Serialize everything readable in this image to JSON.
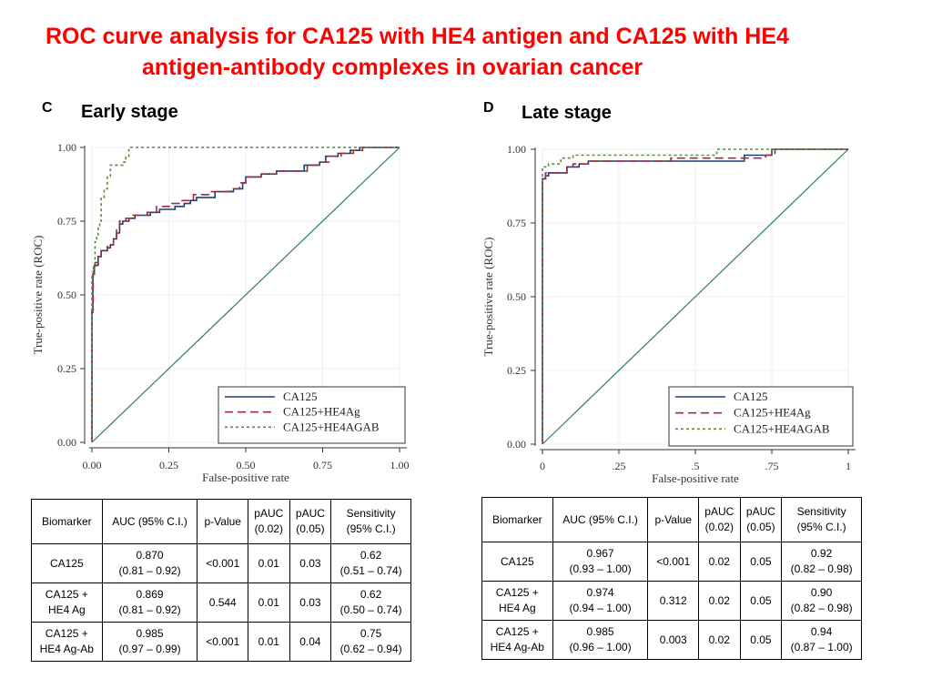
{
  "title": {
    "line1": "ROC curve analysis for CA125 with HE4 antigen and CA125 with HE4",
    "line2": "antigen-antibody complexes in ovarian cancer"
  },
  "panels": [
    {
      "letter": "C",
      "stage": "Early stage",
      "table": {
        "headers": [
          "Biomarker",
          "AUC (95% C.I.)",
          "p-Value",
          "pAUC\n(0.02)",
          "pAUC\n(0.05)",
          "Sensitivity\n(95% C.I.)"
        ],
        "rows": [
          [
            "CA125",
            "0.870\n(0.81 – 0.92)",
            "<0.001",
            "0.01",
            "0.03",
            "0.62\n(0.51 – 0.74)"
          ],
          [
            "CA125 +\nHE4 Ag",
            "0.869\n(0.81 – 0.92)",
            "0.544",
            "0.01",
            "0.03",
            "0.62\n(0.50 – 0.74)"
          ],
          [
            "CA125 +\nHE4 Ag-Ab",
            "0.985\n(0.97 – 0.99)",
            "<0.001",
            "0.01",
            "0.04",
            "0.75\n(0.62 – 0.94)"
          ]
        ]
      }
    },
    {
      "letter": "D",
      "stage": "Late stage",
      "table": {
        "headers": [
          "Biomarker",
          "AUC (95% C.I.)",
          "p-Value",
          "pAUC\n(0.02)",
          "pAUC\n(0.05)",
          "Sensitivity\n(95% C.I.)"
        ],
        "rows": [
          [
            "CA125",
            "0.967\n(0.93 – 1.00)",
            "<0.001",
            "0.02",
            "0.05",
            "0.92\n(0.82 – 0.98)"
          ],
          [
            "CA125 +\nHE4 Ag",
            "0.974\n(0.94 – 1.00)",
            "0.312",
            "0.02",
            "0.05",
            "0.90\n(0.82 – 0.98)"
          ],
          [
            "CA125 +\nHE4 Ag-Ab",
            "0.985\n(0.96 – 1.00)",
            "0.003",
            "0.02",
            "0.05",
            "0.94\n(0.87 – 1.00)"
          ]
        ]
      }
    }
  ],
  "chart_data": [
    {
      "type": "line",
      "title": "Early stage",
      "xlabel": "False-positive rate",
      "ylabel": "True-positive rate (ROC)",
      "xlim": [
        0,
        1
      ],
      "ylim": [
        0,
        1
      ],
      "x_ticks": [
        "0.00",
        "0.25",
        "0.50",
        "0.75",
        "1.00"
      ],
      "y_ticks": [
        "0.00",
        "0.25",
        "0.50",
        "0.75",
        "1.00"
      ],
      "grid": true,
      "legend_position": "bottom-right",
      "reference_line": [
        [
          0,
          0
        ],
        [
          1,
          1
        ]
      ],
      "series": [
        {
          "name": "CA125",
          "color": "#1f3f7a",
          "dash": "solid",
          "points": [
            [
              0,
              0
            ],
            [
              0,
              0.44
            ],
            [
              0.003,
              0.44
            ],
            [
              0.003,
              0.57
            ],
            [
              0.008,
              0.57
            ],
            [
              0.008,
              0.6
            ],
            [
              0.02,
              0.6
            ],
            [
              0.02,
              0.63
            ],
            [
              0.03,
              0.63
            ],
            [
              0.03,
              0.65
            ],
            [
              0.05,
              0.65
            ],
            [
              0.05,
              0.66
            ],
            [
              0.06,
              0.66
            ],
            [
              0.06,
              0.67
            ],
            [
              0.07,
              0.67
            ],
            [
              0.07,
              0.69
            ],
            [
              0.08,
              0.69
            ],
            [
              0.08,
              0.71
            ],
            [
              0.09,
              0.71
            ],
            [
              0.09,
              0.74
            ],
            [
              0.1,
              0.74
            ],
            [
              0.1,
              0.75
            ],
            [
              0.12,
              0.75
            ],
            [
              0.12,
              0.76
            ],
            [
              0.14,
              0.76
            ],
            [
              0.14,
              0.77
            ],
            [
              0.19,
              0.77
            ],
            [
              0.19,
              0.78
            ],
            [
              0.22,
              0.78
            ],
            [
              0.22,
              0.79
            ],
            [
              0.27,
              0.79
            ],
            [
              0.27,
              0.8
            ],
            [
              0.3,
              0.8
            ],
            [
              0.3,
              0.81
            ],
            [
              0.32,
              0.81
            ],
            [
              0.32,
              0.82
            ],
            [
              0.34,
              0.82
            ],
            [
              0.34,
              0.83
            ],
            [
              0.4,
              0.83
            ],
            [
              0.4,
              0.85
            ],
            [
              0.46,
              0.85
            ],
            [
              0.46,
              0.86
            ],
            [
              0.49,
              0.86
            ],
            [
              0.49,
              0.88
            ],
            [
              0.5,
              0.88
            ],
            [
              0.5,
              0.9
            ],
            [
              0.55,
              0.9
            ],
            [
              0.55,
              0.91
            ],
            [
              0.6,
              0.91
            ],
            [
              0.6,
              0.92
            ],
            [
              0.69,
              0.92
            ],
            [
              0.69,
              0.94
            ],
            [
              0.74,
              0.94
            ],
            [
              0.74,
              0.95
            ],
            [
              0.76,
              0.95
            ],
            [
              0.76,
              0.97
            ],
            [
              0.8,
              0.97
            ],
            [
              0.8,
              0.98
            ],
            [
              0.84,
              0.98
            ],
            [
              0.84,
              0.99
            ],
            [
              0.87,
              0.99
            ],
            [
              0.87,
              1
            ],
            [
              1,
              1
            ]
          ]
        },
        {
          "name": "CA125+HE4Ag",
          "color": "#a02c3c",
          "dash": "dashed",
          "points": [
            [
              0,
              0
            ],
            [
              0,
              0.45
            ],
            [
              0.004,
              0.45
            ],
            [
              0.004,
              0.58
            ],
            [
              0.01,
              0.58
            ],
            [
              0.01,
              0.61
            ],
            [
              0.02,
              0.61
            ],
            [
              0.02,
              0.63
            ],
            [
              0.03,
              0.63
            ],
            [
              0.03,
              0.65
            ],
            [
              0.05,
              0.65
            ],
            [
              0.05,
              0.67
            ],
            [
              0.07,
              0.67
            ],
            [
              0.07,
              0.69
            ],
            [
              0.08,
              0.69
            ],
            [
              0.08,
              0.72
            ],
            [
              0.09,
              0.72
            ],
            [
              0.09,
              0.75
            ],
            [
              0.11,
              0.75
            ],
            [
              0.11,
              0.76
            ],
            [
              0.13,
              0.76
            ],
            [
              0.13,
              0.77
            ],
            [
              0.18,
              0.77
            ],
            [
              0.18,
              0.78
            ],
            [
              0.21,
              0.78
            ],
            [
              0.21,
              0.8
            ],
            [
              0.26,
              0.8
            ],
            [
              0.26,
              0.81
            ],
            [
              0.29,
              0.81
            ],
            [
              0.29,
              0.82
            ],
            [
              0.33,
              0.82
            ],
            [
              0.33,
              0.84
            ],
            [
              0.38,
              0.84
            ],
            [
              0.38,
              0.85
            ],
            [
              0.45,
              0.85
            ],
            [
              0.45,
              0.86
            ],
            [
              0.48,
              0.86
            ],
            [
              0.48,
              0.88
            ],
            [
              0.5,
              0.88
            ],
            [
              0.5,
              0.9
            ],
            [
              0.55,
              0.9
            ],
            [
              0.55,
              0.91
            ],
            [
              0.6,
              0.91
            ],
            [
              0.6,
              0.92
            ],
            [
              0.7,
              0.92
            ],
            [
              0.7,
              0.94
            ],
            [
              0.74,
              0.94
            ],
            [
              0.74,
              0.95
            ],
            [
              0.77,
              0.95
            ],
            [
              0.77,
              0.97
            ],
            [
              0.81,
              0.97
            ],
            [
              0.81,
              0.98
            ],
            [
              0.85,
              0.98
            ],
            [
              0.85,
              0.99
            ],
            [
              0.88,
              0.99
            ],
            [
              0.88,
              1
            ],
            [
              1,
              1
            ]
          ]
        },
        {
          "name": "CA125+HE4AGAB",
          "color": "#5a8a3a",
          "dash": "dotted",
          "points": [
            [
              0,
              0
            ],
            [
              0,
              0.57
            ],
            [
              0.005,
              0.57
            ],
            [
              0.005,
              0.6
            ],
            [
              0.01,
              0.6
            ],
            [
              0.01,
              0.68
            ],
            [
              0.015,
              0.68
            ],
            [
              0.015,
              0.7
            ],
            [
              0.02,
              0.7
            ],
            [
              0.02,
              0.73
            ],
            [
              0.025,
              0.73
            ],
            [
              0.025,
              0.75
            ],
            [
              0.03,
              0.75
            ],
            [
              0.03,
              0.83
            ],
            [
              0.04,
              0.83
            ],
            [
              0.04,
              0.86
            ],
            [
              0.05,
              0.86
            ],
            [
              0.05,
              0.9
            ],
            [
              0.06,
              0.9
            ],
            [
              0.06,
              0.94
            ],
            [
              0.1,
              0.94
            ],
            [
              0.1,
              0.95
            ],
            [
              0.11,
              0.95
            ],
            [
              0.11,
              0.97
            ],
            [
              0.12,
              0.97
            ],
            [
              0.12,
              1
            ],
            [
              1,
              1
            ]
          ]
        }
      ]
    },
    {
      "type": "line",
      "title": "Late stage",
      "xlabel": "False-positive rate",
      "ylabel": "True-positive rate (ROC)",
      "xlim": [
        0,
        1
      ],
      "ylim": [
        0,
        1
      ],
      "x_ticks": [
        "0",
        ".25",
        ".5",
        ".75",
        "1"
      ],
      "y_ticks": [
        "0.00",
        "0.25",
        "0.50",
        "0.75",
        "1.00"
      ],
      "grid": true,
      "legend_position": "bottom-right",
      "reference_line": [
        [
          0,
          0
        ],
        [
          1,
          1
        ]
      ],
      "series": [
        {
          "name": "CA125",
          "color": "#1f3f7a",
          "dash": "solid",
          "points": [
            [
              0,
              0
            ],
            [
              0,
              0.9
            ],
            [
              0.01,
              0.9
            ],
            [
              0.01,
              0.91
            ],
            [
              0.02,
              0.91
            ],
            [
              0.02,
              0.92
            ],
            [
              0.08,
              0.92
            ],
            [
              0.08,
              0.94
            ],
            [
              0.12,
              0.94
            ],
            [
              0.12,
              0.95
            ],
            [
              0.15,
              0.95
            ],
            [
              0.15,
              0.96
            ],
            [
              0.66,
              0.96
            ],
            [
              0.66,
              0.98
            ],
            [
              0.75,
              0.98
            ],
            [
              0.75,
              1
            ],
            [
              1,
              1
            ]
          ]
        },
        {
          "name": "CA125+HE4Ag",
          "color": "#a02c3c",
          "dash": "dashed",
          "points": [
            [
              0,
              0
            ],
            [
              0,
              0.9
            ],
            [
              0.01,
              0.9
            ],
            [
              0.01,
              0.92
            ],
            [
              0.08,
              0.92
            ],
            [
              0.08,
              0.94
            ],
            [
              0.1,
              0.94
            ],
            [
              0.1,
              0.95
            ],
            [
              0.15,
              0.95
            ],
            [
              0.15,
              0.96
            ],
            [
              0.42,
              0.96
            ],
            [
              0.42,
              0.97
            ],
            [
              0.73,
              0.97
            ],
            [
              0.73,
              0.98
            ],
            [
              0.76,
              0.98
            ],
            [
              0.76,
              1
            ],
            [
              1,
              1
            ]
          ]
        },
        {
          "name": "CA125+HE4AGAB",
          "color": "#5a8a3a",
          "dash": "dotted",
          "points": [
            [
              0,
              0
            ],
            [
              0,
              0.94
            ],
            [
              0.02,
              0.94
            ],
            [
              0.02,
              0.95
            ],
            [
              0.06,
              0.95
            ],
            [
              0.06,
              0.97
            ],
            [
              0.1,
              0.97
            ],
            [
              0.1,
              0.98
            ],
            [
              0.57,
              0.98
            ],
            [
              0.57,
              1
            ],
            [
              1,
              1
            ]
          ]
        }
      ]
    }
  ]
}
